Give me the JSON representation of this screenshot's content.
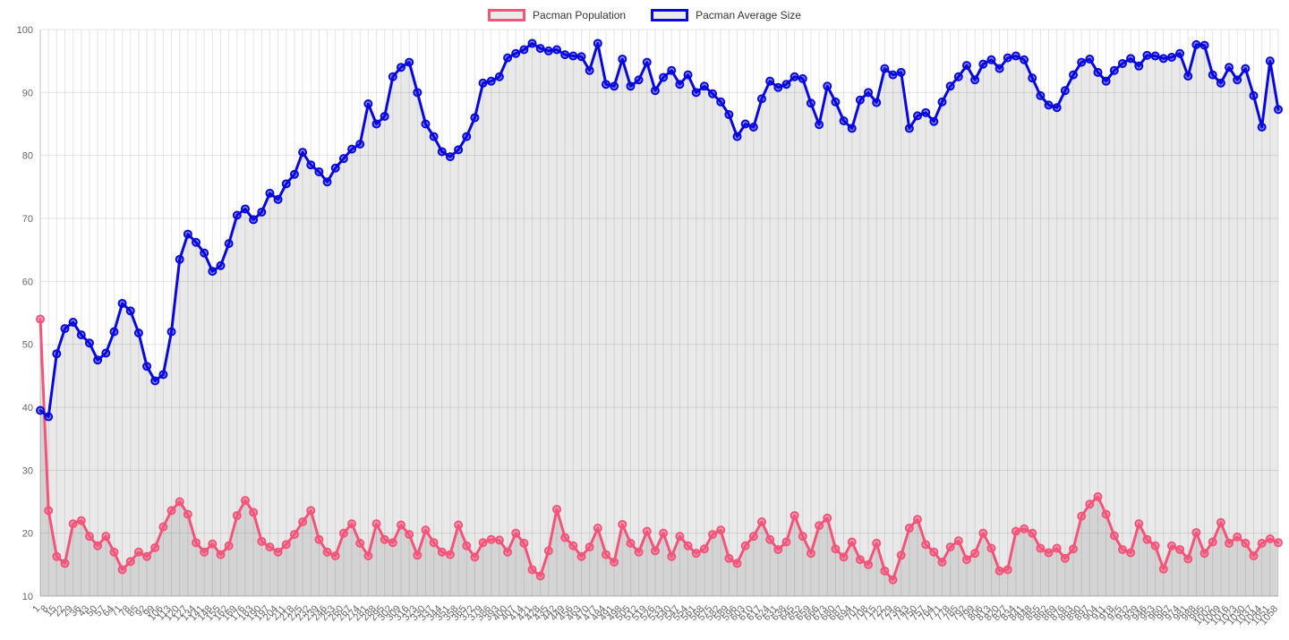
{
  "chart_data": {
    "type": "line",
    "title": "",
    "xlabel": "",
    "ylabel": "",
    "ylim": [
      10,
      100
    ],
    "y_ticks": [
      10,
      20,
      30,
      40,
      50,
      60,
      70,
      80,
      90,
      100
    ],
    "grid": true,
    "legend_position": "top",
    "area_fill_color": "rgba(0,0,0,0.085)",
    "grid_color": "rgba(0,0,0,0.1)",
    "tick_label_color": "#666666",
    "x_labels": [
      1,
      8,
      15,
      22,
      29,
      36,
      43,
      50,
      57,
      64,
      71,
      78,
      85,
      92,
      99,
      106,
      113,
      120,
      127,
      134,
      141,
      148,
      155,
      162,
      169,
      176,
      183,
      190,
      197,
      204,
      211,
      218,
      225,
      232,
      239,
      246,
      253,
      260,
      267,
      274,
      281,
      288,
      295,
      302,
      309,
      316,
      323,
      330,
      337,
      344,
      351,
      358,
      365,
      372,
      379,
      386,
      393,
      400,
      407,
      414,
      421,
      428,
      435,
      442,
      449,
      456,
      463,
      470,
      477,
      484,
      491,
      498,
      505,
      512,
      519,
      526,
      533,
      540,
      547,
      554,
      561,
      568,
      575,
      582,
      589,
      596,
      603,
      610,
      617,
      624,
      631,
      638,
      645,
      652,
      659,
      666,
      673,
      680,
      687,
      694,
      701,
      708,
      715,
      722,
      729,
      736,
      743,
      750,
      757,
      764,
      771,
      778,
      785,
      792,
      799,
      806,
      813,
      820,
      827,
      834,
      841,
      848,
      855,
      862,
      869,
      876,
      883,
      890,
      897,
      904,
      911,
      918,
      925,
      932,
      939,
      946,
      953,
      960,
      967,
      974,
      981,
      988,
      995,
      1002,
      1009,
      1016,
      1023,
      1030,
      1037,
      1044,
      1051,
      1058
    ],
    "series": [
      {
        "name": "Pacman Population",
        "color": "#f4547a",
        "values": [
          54,
          23.6,
          16.3,
          15.2,
          21.5,
          22,
          19.5,
          18,
          19.5,
          17,
          14.2,
          15.5,
          17,
          16.3,
          17.7,
          21,
          23.6,
          25,
          23,
          18.5,
          17,
          18.3,
          16.6,
          18,
          22.8,
          25.2,
          23.3,
          18.7,
          17.8,
          17,
          18.2,
          19.8,
          21.8,
          23.6,
          19,
          17,
          16.4,
          20,
          21.5,
          18.4,
          16.4,
          21.5,
          19,
          18.5,
          21.3,
          19.8,
          16.5,
          20.5,
          18.5,
          17,
          16.6,
          21.3,
          18,
          16.2,
          18.5,
          19,
          18.9,
          17,
          20,
          18.4,
          14.2,
          13.2,
          17.2,
          23.8,
          19.3,
          18,
          16.3,
          17.8,
          20.8,
          16.6,
          15.4,
          21.4,
          18.4,
          17,
          20.3,
          17.2,
          20,
          16.3,
          19.5,
          18,
          16.8,
          17.5,
          19.8,
          20.5,
          16,
          15.2,
          18,
          19.5,
          21.8,
          19,
          17.4,
          18.6,
          22.8,
          19.5,
          16.8,
          21.2,
          22.4,
          17.5,
          16.2,
          18.6,
          15.8,
          15,
          18.4,
          14,
          12.6,
          16.5,
          20.8,
          22.2,
          18.2,
          17,
          15.4,
          17.8,
          18.8,
          15.8,
          16.8,
          20,
          17.6,
          14,
          14.2,
          20.3,
          20.7,
          20,
          17.6,
          16.9,
          17.6,
          16,
          17.5,
          22.7,
          24.6,
          25.8,
          23,
          19.6,
          17.4,
          16.9,
          21.5,
          19,
          18,
          14.3,
          18,
          17.4,
          15.9,
          20.1,
          16.8,
          18.6,
          21.7,
          18.4,
          19.4,
          18.4,
          16.4,
          18.4,
          19.1,
          18.5
        ]
      },
      {
        "name": "Pacman Average Size",
        "color": "#0808de",
        "values": [
          39.5,
          38.5,
          48.5,
          52.5,
          53.5,
          51.5,
          50.2,
          47.5,
          48.6,
          52,
          56.5,
          55.3,
          51.8,
          46.5,
          44.2,
          45.2,
          52,
          63.5,
          67.5,
          66.2,
          64.5,
          61.6,
          62.5,
          66,
          70.5,
          71.5,
          69.8,
          71,
          74,
          73,
          75.5,
          77,
          80.5,
          78.5,
          77.4,
          75.8,
          78,
          79.5,
          81,
          81.8,
          88.2,
          85,
          86.2,
          92.5,
          94,
          94.8,
          90,
          85,
          83,
          80.6,
          79.8,
          80.9,
          83,
          86,
          91.5,
          91.8,
          92.5,
          95.5,
          96.2,
          96.8,
          97.8,
          97,
          96.6,
          96.8,
          96,
          95.8,
          95.7,
          93.5,
          97.8,
          91.3,
          91,
          95.3,
          91,
          92,
          94.8,
          90.3,
          92.4,
          93.5,
          91.3,
          92.8,
          90,
          91,
          89.8,
          88.5,
          86.5,
          83,
          85,
          84.5,
          89,
          91.8,
          90.8,
          91.3,
          92.5,
          92.2,
          88.3,
          84.9,
          91,
          88.5,
          85.5,
          84.3,
          88.8,
          90,
          88.4,
          93.8,
          92.8,
          93.2,
          84.3,
          86.3,
          86.8,
          85.4,
          88.5,
          91,
          92.5,
          94.3,
          92,
          94.5,
          95.2,
          93.8,
          95.5,
          95.8,
          95.2,
          92.3,
          89.5,
          88,
          87.6,
          90.3,
          92.8,
          94.8,
          95.3,
          93.2,
          91.8,
          93.5,
          94.6,
          95.4,
          94.2,
          95.9,
          95.8,
          95.4,
          95.6,
          96.2,
          92.6,
          97.6,
          97.5,
          92.8,
          91.5,
          94,
          92,
          93.8,
          89.5,
          84.5,
          95,
          87.3
        ]
      }
    ]
  }
}
